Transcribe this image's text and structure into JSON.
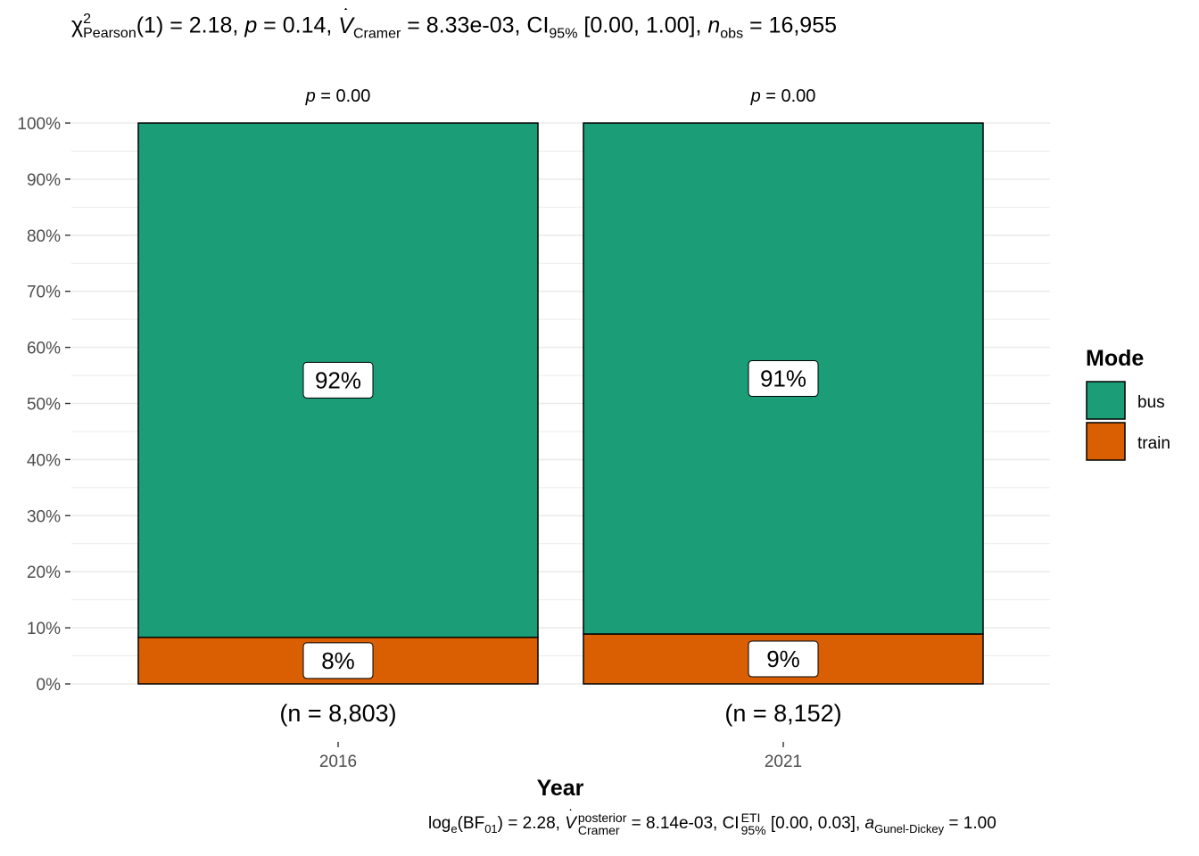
{
  "subtitle": {
    "stat_symbol": "χ",
    "stat_sup": "2",
    "stat_sub": "Pearson",
    "df": "(1)",
    "stat_value": " = 2.18, ",
    "p_label": "p",
    "p_value": " = 0.14, ",
    "effsize_symbol": "V",
    "effsize_sub": "Cramer",
    "effsize_value": " = 8.33e-03, CI",
    "ci_sub": "95%",
    "ci_value": " [0.00, 1.00], ",
    "n_label": "n",
    "n_sub": "obs",
    "n_value": " = 16,955"
  },
  "caption": {
    "bf_label": "log",
    "bf_sub_e": "e",
    "bf_paren_open": "(BF",
    "bf_sub": "01",
    "bf_value": ") = 2.28, ",
    "post_symbol": "V",
    "post_sup": "posterior",
    "post_sub": "Cramer",
    "post_value": " = 8.14e-03, CI",
    "ci_sup": "ETI",
    "ci_sub": "95%",
    "ci_value": " [0.00, 0.03], ",
    "prior_symbol": "a",
    "prior_sub": "Gunel-Dickey",
    "prior_value": " = 1.00"
  },
  "chart_data": {
    "type": "bar",
    "stacked": true,
    "percent": true,
    "categories": [
      "2016",
      "2021"
    ],
    "series": [
      {
        "name": "train",
        "values": [
          8.3,
          8.9
        ],
        "labels": [
          "8%",
          "9%"
        ],
        "color": "#D95F02"
      },
      {
        "name": "bus",
        "values": [
          91.7,
          91.1
        ],
        "labels": [
          "92%",
          "91%"
        ],
        "color": "#1B9E77"
      }
    ],
    "bar_top_labels": [
      "p = 0.00",
      "p = 0.00"
    ],
    "p_prefix": "p",
    "p_values": [
      " = 0.00",
      " = 0.00"
    ],
    "n_labels": [
      "(n = 8,803)",
      "(n = 8,152)"
    ],
    "xlabel": "Year",
    "ylabel": "",
    "ylim": [
      0,
      100
    ],
    "yticks": [
      "0%",
      "10%",
      "20%",
      "30%",
      "40%",
      "50%",
      "60%",
      "70%",
      "80%",
      "90%",
      "100%"
    ],
    "grid": true,
    "legend": {
      "title": "Mode",
      "position": "right",
      "entries": [
        "bus",
        "train"
      ]
    }
  },
  "colors": {
    "bus": "#1B9E77",
    "train": "#D95F02",
    "grid": "#EBEBEB"
  }
}
